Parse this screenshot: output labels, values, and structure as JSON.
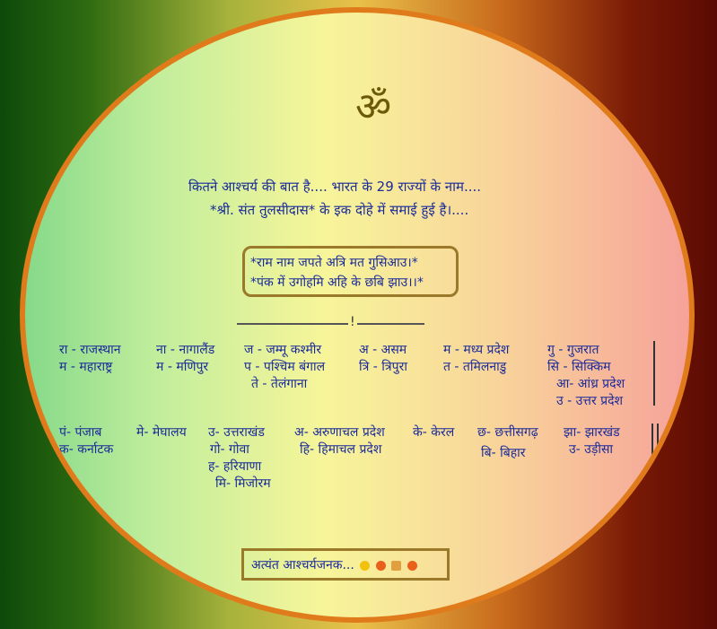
{
  "om": "ॐ",
  "intro": {
    "line1": "कितने आश्चर्य की बात है....   भारत के 29 राज्यों के नाम....",
    "line2": "*श्री. संत तुलसीदास* के इक दोहे में समाई हुई है।...."
  },
  "verse": {
    "line1": "*राम नाम जपते अत्रि मत गुसिआउ।*",
    "line2": "*पंक में उगोहमि अहि के छबि झाउ।।*"
  },
  "separator": "!",
  "row1": [
    [
      "रा - राजस्थान",
      "म - महाराष्ट्र"
    ],
    [
      "ना - नागालैंड",
      "म - मणिपुर"
    ],
    [
      "ज - जम्मू कश्मीर",
      "प - पश्चिम बंगाल",
      "ते - तेलंगाना"
    ],
    [
      "अ - असम",
      "त्रि - त्रिपुरा"
    ],
    [
      "म - मध्य प्रदेश",
      "त - तमिलनाडु"
    ],
    [
      "गु - गुजरात",
      "सि - सिक्किम",
      "आ- आंध्र प्रदेश",
      "उ - उत्तर प्रदेश"
    ]
  ],
  "row2": [
    [
      "पं- पंजाब",
      "क- कर्नाटक"
    ],
    [
      "मे- मेघालय"
    ],
    [
      "उ- उत्तराखंड",
      "गो- गोवा",
      "ह- हरियाणा",
      "मि- मिजोरम"
    ],
    [
      "अ- अरुणाचल प्रदेश",
      "हि- हिमाचल प्रदेश"
    ],
    [
      "के- केरल"
    ],
    [
      "छ- छत्तीसगढ़",
      "बि- बिहार"
    ],
    [
      "झा- झारखंड",
      "उ- उड़ीसा"
    ]
  ],
  "footer": "अत्यंत आश्चर्यजनक...",
  "colors": {
    "text": "#1a2a9a",
    "border": "#e07b1c",
    "box": "#9a7a2a"
  }
}
